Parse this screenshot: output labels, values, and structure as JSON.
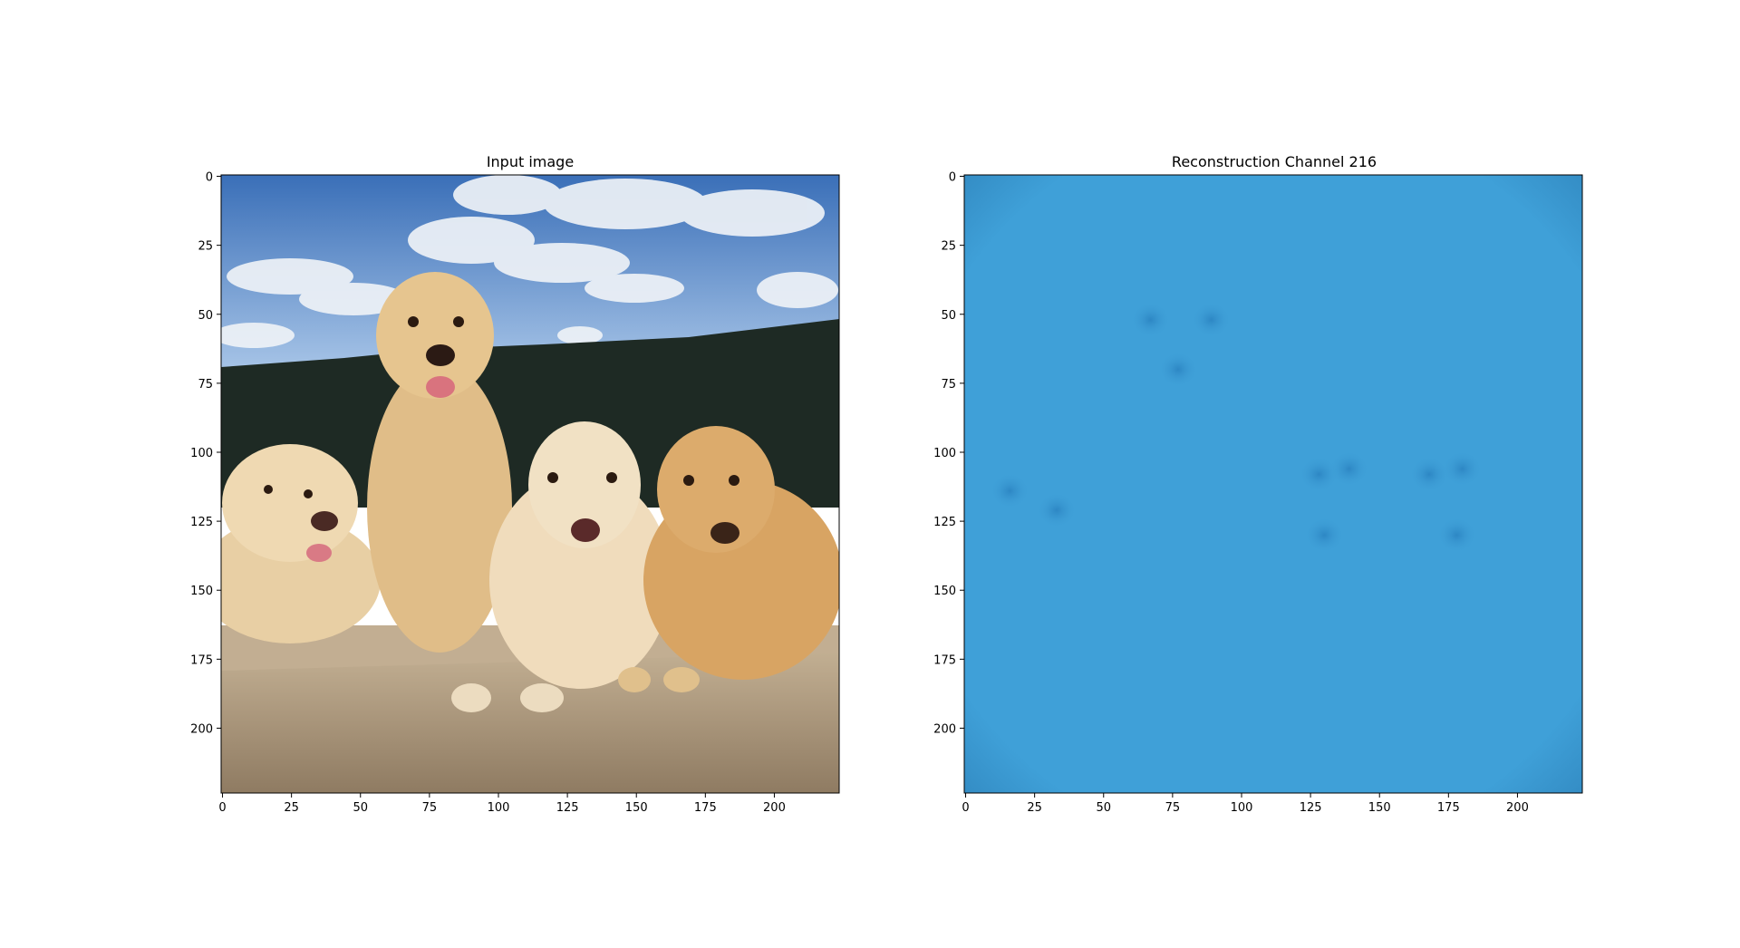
{
  "colors": {
    "frame": "#000000",
    "background": "#ffffff",
    "recon_base": "#3fa0d8",
    "recon_edge": "#2f85bd",
    "recon_blob": "#2b84c2",
    "sky_top": "#3a6fb8",
    "sky_light": "#a9c6e8",
    "cloud": "#eef2f7",
    "hill": "#1e2a24",
    "ground": "#b9a58a",
    "dog_fur": "#e2c08c",
    "dog_fur_dark": "#c99a5a"
  },
  "chart_data": [
    {
      "type": "image",
      "title": "Input image",
      "xlim": [
        -0.5,
        223.5
      ],
      "ylim": [
        223.5,
        -0.5
      ],
      "xticks": [
        0,
        25,
        50,
        75,
        100,
        125,
        150,
        175,
        200
      ],
      "yticks": [
        0,
        25,
        50,
        75,
        100,
        125,
        150,
        175,
        200
      ],
      "xtick_labels": [
        "0",
        "25",
        "50",
        "75",
        "100",
        "125",
        "150",
        "175",
        "200"
      ],
      "ytick_labels": [
        "0",
        "25",
        "50",
        "75",
        "100",
        "125",
        "150",
        "175",
        "200"
      ],
      "content": "photo of four golden retrievers lying on a rock under a cloudy sky"
    },
    {
      "type": "image",
      "title": "Reconstruction Channel 216",
      "xlim": [
        -0.5,
        223.5
      ],
      "ylim": [
        223.5,
        -0.5
      ],
      "xticks": [
        0,
        25,
        50,
        75,
        100,
        125,
        150,
        175,
        200
      ],
      "yticks": [
        0,
        25,
        50,
        75,
        100,
        125,
        150,
        175,
        200
      ],
      "xtick_labels": [
        "0",
        "25",
        "50",
        "75",
        "100",
        "125",
        "150",
        "175",
        "200"
      ],
      "ytick_labels": [
        "0",
        "25",
        "50",
        "75",
        "100",
        "125",
        "150",
        "175",
        "200"
      ],
      "blobs": [
        {
          "x": 67,
          "y": 52
        },
        {
          "x": 89,
          "y": 52
        },
        {
          "x": 77,
          "y": 70
        },
        {
          "x": 16,
          "y": 114
        },
        {
          "x": 33,
          "y": 121
        },
        {
          "x": 128,
          "y": 108
        },
        {
          "x": 139,
          "y": 106
        },
        {
          "x": 130,
          "y": 130
        },
        {
          "x": 168,
          "y": 108
        },
        {
          "x": 180,
          "y": 106
        },
        {
          "x": 178,
          "y": 130
        }
      ]
    }
  ]
}
